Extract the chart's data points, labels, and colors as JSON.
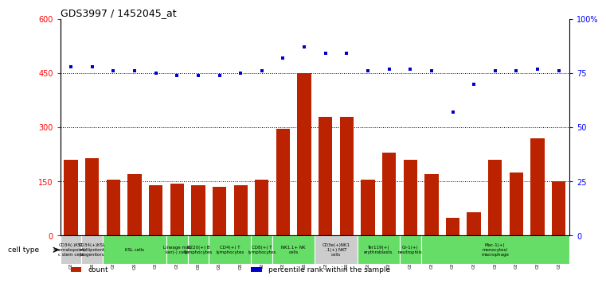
{
  "title": "GDS3997 / 1452045_at",
  "gsm_labels": [
    "GSM686636",
    "GSM686637",
    "GSM686638",
    "GSM686639",
    "GSM686640",
    "GSM686641",
    "GSM686642",
    "GSM686643",
    "GSM686644",
    "GSM686645",
    "GSM686646",
    "GSM686647",
    "GSM686648",
    "GSM686649",
    "GSM686650",
    "GSM686651",
    "GSM686652",
    "GSM686653",
    "GSM686654",
    "GSM686655",
    "GSM686656",
    "GSM686657",
    "GSM686658",
    "GSM686659"
  ],
  "counts": [
    210,
    215,
    155,
    170,
    140,
    145,
    140,
    135,
    140,
    155,
    295,
    450,
    330,
    330,
    155,
    230,
    210,
    170,
    50,
    65,
    210,
    175,
    270,
    150
  ],
  "percentile_ranks": [
    78,
    78,
    76,
    76,
    75,
    74,
    74,
    74,
    75,
    76,
    82,
    87,
    84,
    84,
    76,
    77,
    77,
    76,
    57,
    70,
    76,
    76,
    77,
    76
  ],
  "bar_color": "#bb2200",
  "dot_color": "#0000cc",
  "ylim_left": [
    0,
    600
  ],
  "ylim_right": [
    0,
    100
  ],
  "yticks_left": [
    0,
    150,
    300,
    450,
    600
  ],
  "yticks_right": [
    0,
    25,
    50,
    75,
    100
  ],
  "yticklabels_right": [
    "0",
    "25",
    "50",
    "75",
    "100%"
  ],
  "grid_lines": [
    150,
    300,
    450
  ],
  "group_configs": [
    {
      "s": 0,
      "e": 0,
      "label": "CD34(-)KSL\nhematopoieti\nc stem cells",
      "color": "#cccccc"
    },
    {
      "s": 1,
      "e": 1,
      "label": "CD34(+)KSL\nmultipotent\nprogenitors",
      "color": "#cccccc"
    },
    {
      "s": 2,
      "e": 4,
      "label": "KSL cells",
      "color": "#66dd66"
    },
    {
      "s": 5,
      "e": 5,
      "label": "Lineage mar\nker(-) cells",
      "color": "#66dd66"
    },
    {
      "s": 6,
      "e": 6,
      "label": "B220(+) B\nlymphocytes",
      "color": "#66dd66"
    },
    {
      "s": 7,
      "e": 8,
      "label": "CD4(+) T\nlymphocytes",
      "color": "#66dd66"
    },
    {
      "s": 9,
      "e": 9,
      "label": "CD8(+) T\nlymphocytes",
      "color": "#66dd66"
    },
    {
      "s": 10,
      "e": 11,
      "label": "NK1.1+ NK\ncells",
      "color": "#66dd66"
    },
    {
      "s": 12,
      "e": 13,
      "label": "CD3e(+)NK1\n.1(+) NKT\ncells",
      "color": "#cccccc"
    },
    {
      "s": 14,
      "e": 15,
      "label": "Ter119(+)\nerythroblasts",
      "color": "#66dd66"
    },
    {
      "s": 16,
      "e": 16,
      "label": "Gr-1(+)\nneutrophils",
      "color": "#66dd66"
    },
    {
      "s": 17,
      "e": 23,
      "label": "Mac-1(+)\nmonocytes/\nmacrophage",
      "color": "#66dd66"
    }
  ],
  "cell_type_label": "cell type",
  "legend_items": [
    {
      "label": "count",
      "color": "#bb2200"
    },
    {
      "label": "percentile rank within the sample",
      "color": "#0000cc"
    }
  ]
}
